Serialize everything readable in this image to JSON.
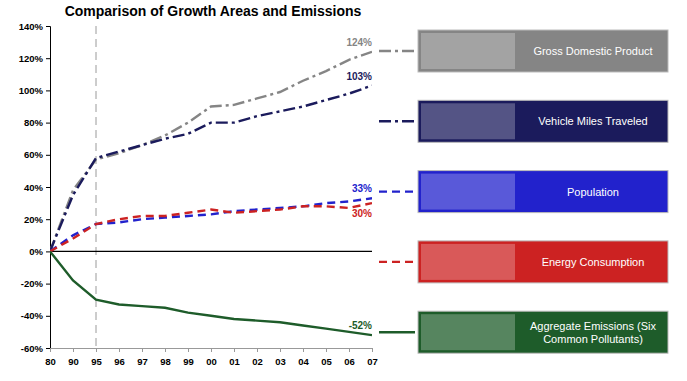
{
  "chart_data": {
    "type": "line",
    "title": "Comparison of Growth Areas and Emissions",
    "categories": [
      "80",
      "90",
      "95",
      "96",
      "97",
      "98",
      "99",
      "00",
      "01",
      "02",
      "03",
      "04",
      "05",
      "06",
      "07"
    ],
    "ylim": [
      -60,
      140
    ],
    "yticks": [
      {
        "value": -60,
        "label": "-60%"
      },
      {
        "value": -40,
        "label": "-40%"
      },
      {
        "value": -20,
        "label": "-20%"
      },
      {
        "value": 0,
        "label": "0%"
      },
      {
        "value": 20,
        "label": "20%"
      },
      {
        "value": 40,
        "label": "40%"
      },
      {
        "value": 60,
        "label": "60%"
      },
      {
        "value": 80,
        "label": "80%"
      },
      {
        "value": 100,
        "label": "100%"
      },
      {
        "value": 120,
        "label": "120%"
      },
      {
        "value": 140,
        "label": "140%"
      }
    ],
    "grid": false,
    "legend": "right",
    "reference_lines": [
      {
        "x": "95",
        "line_style": "dashed"
      }
    ],
    "series": [
      {
        "name": "Gross Domestic Product",
        "color": "#858585",
        "line_style": "dash-dot",
        "values": [
          0,
          38,
          57,
          61,
          66,
          72,
          80,
          90,
          91,
          95,
          99,
          106,
          112,
          119,
          124
        ],
        "value_labels": [
          null,
          null,
          null,
          null,
          null,
          null,
          null,
          null,
          null,
          null,
          null,
          null,
          null,
          null,
          "124%"
        ]
      },
      {
        "name": "Vehicle Miles Traveled",
        "color": "#1b1b5c",
        "line_style": "dash-dot",
        "values": [
          0,
          35,
          58,
          62,
          66,
          70,
          73,
          80,
          80,
          84,
          87,
          90,
          94,
          98,
          103
        ],
        "value_labels": [
          null,
          null,
          null,
          null,
          null,
          null,
          null,
          null,
          null,
          null,
          null,
          null,
          null,
          null,
          "103%"
        ]
      },
      {
        "name": "Population",
        "color": "#2222cc",
        "line_style": "dashed",
        "values": [
          0,
          10,
          17,
          18,
          20,
          21,
          22,
          23,
          25,
          26,
          27,
          28,
          30,
          31,
          33
        ],
        "value_labels": [
          null,
          null,
          null,
          null,
          null,
          null,
          null,
          null,
          null,
          null,
          null,
          null,
          null,
          null,
          "33%"
        ]
      },
      {
        "name": "Energy Consumption",
        "color": "#cc2222",
        "line_style": "dashed",
        "values": [
          0,
          8,
          17,
          20,
          22,
          22,
          24,
          26,
          24,
          25,
          26,
          28,
          28,
          27,
          30
        ],
        "value_labels": [
          null,
          null,
          null,
          null,
          null,
          null,
          null,
          null,
          null,
          null,
          null,
          null,
          null,
          null,
          "30%"
        ]
      },
      {
        "name": "Aggregate Emissions (Six Common Pollutants)",
        "color": "#1e5c2a",
        "line_style": "solid",
        "values": [
          0,
          -18,
          -30,
          -33,
          -34,
          -35,
          -38,
          -40,
          -42,
          -43,
          -44,
          -46,
          -48,
          -50,
          -52
        ],
        "value_labels": [
          null,
          null,
          null,
          null,
          null,
          null,
          null,
          null,
          null,
          null,
          null,
          null,
          null,
          null,
          "-52%"
        ]
      }
    ]
  }
}
